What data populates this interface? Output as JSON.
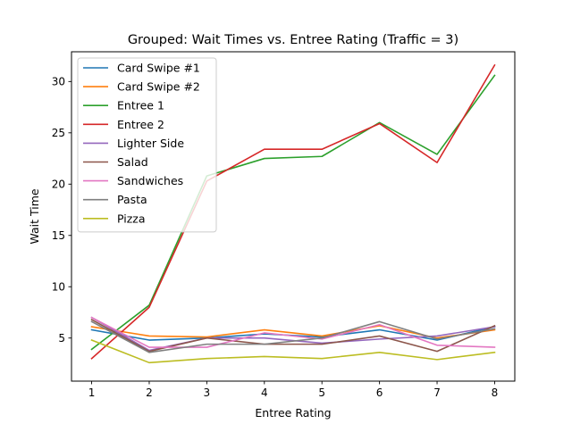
{
  "chart_data": {
    "type": "line",
    "title": "Grouped: Wait Times vs. Entree Rating (Traffic = 3)",
    "xlabel": "Entree Rating",
    "ylabel": "Wait Time",
    "xlim": [
      0.65,
      8.35
    ],
    "ylim": [
      0.8,
      32.9
    ],
    "x": [
      1,
      2,
      3,
      4,
      5,
      6,
      7,
      8
    ],
    "x_ticks": [
      1,
      2,
      3,
      4,
      5,
      6,
      7,
      8
    ],
    "y_ticks": [
      5,
      10,
      15,
      20,
      25,
      30
    ],
    "grid": false,
    "legend_position": "top-left",
    "series": [
      {
        "name": "Card Swipe #1",
        "color": "#1f77b4",
        "values": [
          5.8,
          4.8,
          5.0,
          5.4,
          5.1,
          5.8,
          4.8,
          6.1
        ]
      },
      {
        "name": "Card Swipe #2",
        "color": "#ff7f0e",
        "values": [
          6.1,
          5.2,
          5.1,
          5.8,
          5.2,
          6.2,
          5.0,
          5.8
        ]
      },
      {
        "name": "Entree 1",
        "color": "#2ca02c",
        "values": [
          3.9,
          8.2,
          20.8,
          22.5,
          22.7,
          26.0,
          22.9,
          30.6
        ]
      },
      {
        "name": "Entree 2",
        "color": "#d62728",
        "values": [
          3.0,
          8.0,
          20.3,
          23.4,
          23.4,
          25.9,
          22.1,
          31.6
        ]
      },
      {
        "name": "Lighter Side",
        "color": "#9467bd",
        "values": [
          7.0,
          3.8,
          5.0,
          5.0,
          4.5,
          4.9,
          5.2,
          6.1
        ]
      },
      {
        "name": "Salad",
        "color": "#8c564b",
        "values": [
          6.8,
          3.7,
          5.0,
          4.4,
          4.4,
          5.2,
          3.7,
          6.2
        ]
      },
      {
        "name": "Sandwiches",
        "color": "#e377c2",
        "values": [
          7.0,
          4.1,
          4.1,
          5.5,
          4.9,
          6.3,
          4.3,
          4.1
        ]
      },
      {
        "name": "Pasta",
        "color": "#7f7f7f",
        "values": [
          6.6,
          3.6,
          4.4,
          4.4,
          5.0,
          6.6,
          4.9,
          5.9
        ]
      },
      {
        "name": "Pizza",
        "color": "#bcbd22",
        "values": [
          4.8,
          2.6,
          3.0,
          3.2,
          3.0,
          3.6,
          2.9,
          3.6
        ]
      }
    ]
  }
}
